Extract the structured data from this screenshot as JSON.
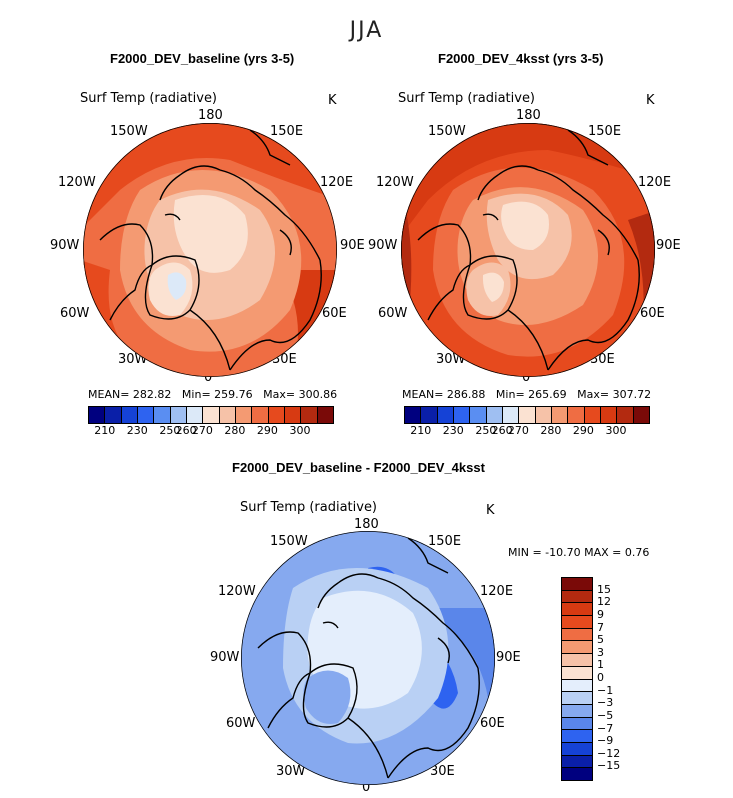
{
  "season": "JJA",
  "colors": {
    "abs_scale": [
      "#00007f",
      "#0a1fa8",
      "#1542d6",
      "#2e63f0",
      "#5a8ef2",
      "#9fbff2",
      "#dce9f8",
      "#fbe2d2",
      "#f6c2a8",
      "#f49a72",
      "#ef6d43",
      "#e64a1e",
      "#d73a12",
      "#b32a10",
      "#7a0a08"
    ],
    "diff_scale": [
      "#7a0a08",
      "#b32a10",
      "#d73a12",
      "#e64a1e",
      "#ef6d43",
      "#f49a72",
      "#f6c2a8",
      "#fbe2d2",
      "#e4eefc",
      "#b9d0f4",
      "#86a9ef",
      "#5a86ea",
      "#2e63f0",
      "#1542d6",
      "#0a1fa8",
      "#00007f"
    ],
    "land": "#000000"
  },
  "panels": [
    {
      "title": "F2000_DEV_baseline (yrs 3-5)",
      "variable": "Surf Temp (radiative)",
      "unit": "K",
      "mean_label": "MEAN=",
      "mean": "282.82",
      "min_label": "Min=",
      "min": "259.76",
      "max_label": "Max=",
      "max": "300.86"
    },
    {
      "title": "F2000_DEV_4ksst (yrs 3-5)",
      "variable": "Surf Temp (radiative)",
      "unit": "K",
      "mean_label": "MEAN=",
      "mean": "286.88",
      "min_label": "Min=",
      "min": "265.69",
      "max_label": "Max=",
      "max": "307.72"
    }
  ],
  "abs_ticks": [
    "210",
    "230",
    "250",
    "260",
    "270",
    "280",
    "290",
    "300"
  ],
  "diff_panel": {
    "title": "F2000_DEV_baseline - F2000_DEV_4ksst",
    "variable": "Surf Temp (radiative)",
    "unit": "K",
    "minmax_text": "MIN = -10.70 MAX =    0.76",
    "ticks": [
      "15",
      "12",
      "9",
      "7",
      "5",
      "3",
      "1",
      "0",
      "−1",
      "−3",
      "−5",
      "−7",
      "−9",
      "−12",
      "−15"
    ]
  },
  "lon_labels": {
    "n180": "180",
    "w150": "150W",
    "e150": "150E",
    "w120": "120W",
    "e120": "120E",
    "w90": "90W",
    "e90": "90E",
    "w60": "60W",
    "e60": "60E",
    "w30": "30W",
    "e30": "30E",
    "s0": "0"
  }
}
